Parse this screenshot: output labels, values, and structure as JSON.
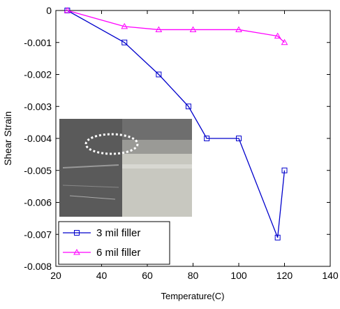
{
  "chart_data": {
    "type": "line",
    "xlabel": "Temperature(C)",
    "ylabel": "Shear Strain",
    "xlim": [
      20,
      140
    ],
    "xticks": [
      20,
      40,
      60,
      80,
      100,
      120,
      140
    ],
    "ylim": [
      -0.008,
      0
    ],
    "yticks": [
      -0.008,
      -0.007,
      -0.006,
      -0.005,
      -0.004,
      -0.003,
      -0.002,
      -0.001,
      0
    ],
    "legend": "lower left",
    "series": [
      {
        "name": "3 mil filler",
        "color": "#0000cc",
        "marker": "square",
        "x": [
          25,
          50,
          65,
          78,
          86,
          100,
          117,
          120
        ],
        "values": [
          0,
          -0.001,
          -0.002,
          -0.003,
          -0.004,
          -0.004,
          -0.0071,
          -0.005
        ]
      },
      {
        "name": "6 mil filler",
        "color": "#ff00ff",
        "marker": "triangle",
        "x": [
          25,
          50,
          65,
          80,
          100,
          117,
          120
        ],
        "values": [
          0,
          -0.0005,
          -0.0006,
          -0.0006,
          -0.0006,
          -0.0008,
          -0.001
        ]
      }
    ]
  }
}
